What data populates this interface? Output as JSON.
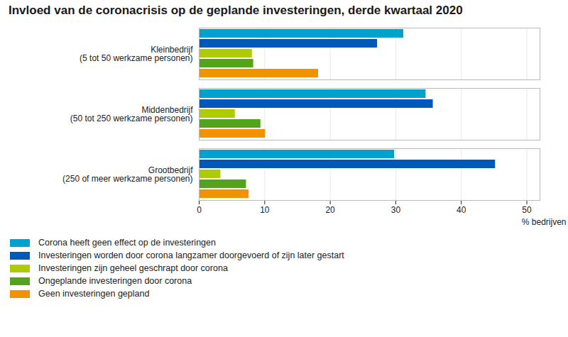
{
  "chart_data": {
    "type": "bar",
    "orientation": "horizontal",
    "title": "Invloed van de coronacrisis op de geplande investeringen, derde kwartaal 2020",
    "x_label": "% bedrijven",
    "categories": [
      "Kleinbedrijf\n(5 tot 50 werkzame personen)",
      "Middenbedrijf\n(50 tot 250 werkzame personen)",
      "Grootbedrijf\n(250 of meer werkzame personen)"
    ],
    "series": [
      {
        "name": "Corona heeft geen effect op de investeringen",
        "color": "#00a1cd",
        "values": [
          31.2,
          34.6,
          29.8
        ]
      },
      {
        "name": "Investeringen worden door corona langzamer doorgevoerd of zijn later gestart",
        "color": "#0058b8",
        "values": [
          27.2,
          35.7,
          45.2
        ]
      },
      {
        "name": "Investeringen zijn geheel geschrapt door corona",
        "color": "#afcb05",
        "values": [
          8.1,
          5.5,
          3.3
        ]
      },
      {
        "name": "Ongeplande investeringen door corona",
        "color": "#53a31d",
        "values": [
          8.3,
          9.4,
          7.2
        ]
      },
      {
        "name": "Geen investeringen gepland",
        "color": "#f39200",
        "values": [
          18.2,
          10.1,
          7.6
        ]
      }
    ],
    "xlim": [
      0,
      52
    ],
    "xticks": [
      0,
      10,
      20,
      30,
      40,
      50
    ],
    "grid": true,
    "legend": "bottom"
  }
}
